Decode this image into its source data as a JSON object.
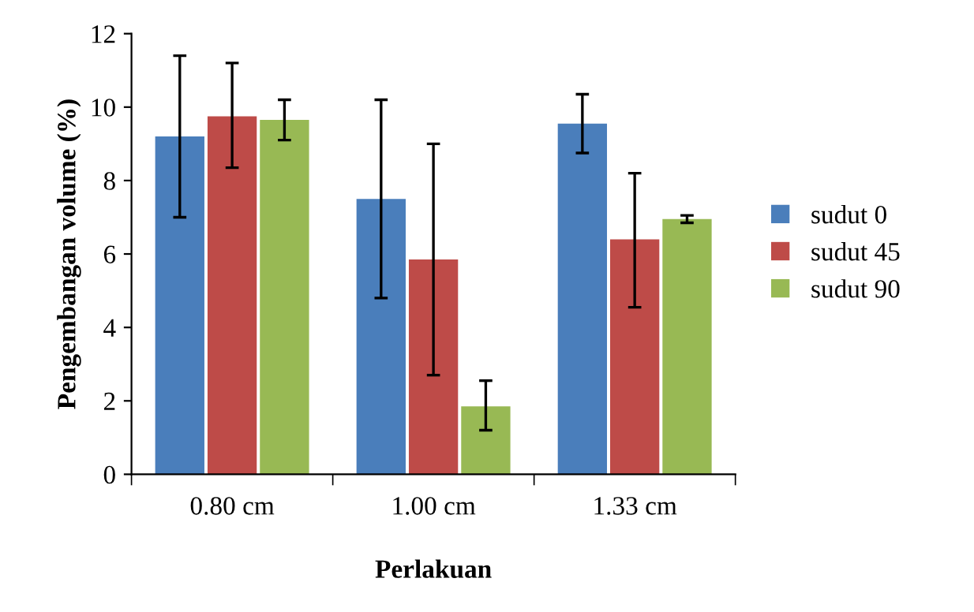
{
  "chart_data": {
    "type": "bar",
    "xlabel": "Perlakuan",
    "ylabel": "Pengembangan volume (%)",
    "categories": [
      "0.80 cm",
      "1.00 cm",
      "1.33 cm"
    ],
    "series": [
      {
        "name": "sudut 0",
        "color": "#4a7ebb",
        "values": [
          9.2,
          7.5,
          9.55
        ],
        "errors": [
          [
            7.0,
            11.4
          ],
          [
            4.8,
            10.2
          ],
          [
            8.75,
            10.35
          ]
        ]
      },
      {
        "name": "sudut 45",
        "color": "#be4b48",
        "values": [
          9.75,
          5.85,
          6.4
        ],
        "errors": [
          [
            8.35,
            11.2
          ],
          [
            2.7,
            9.0
          ],
          [
            4.55,
            8.2
          ]
        ]
      },
      {
        "name": "sudut 90",
        "color": "#98b954",
        "values": [
          9.65,
          1.85,
          6.95
        ],
        "errors": [
          [
            9.1,
            10.2
          ],
          [
            1.2,
            2.55
          ],
          [
            6.85,
            7.05
          ]
        ]
      }
    ],
    "ylim": [
      0,
      12
    ],
    "yticks": [
      0,
      2,
      4,
      6,
      8,
      10,
      12
    ],
    "grid": false,
    "legend": "right"
  }
}
